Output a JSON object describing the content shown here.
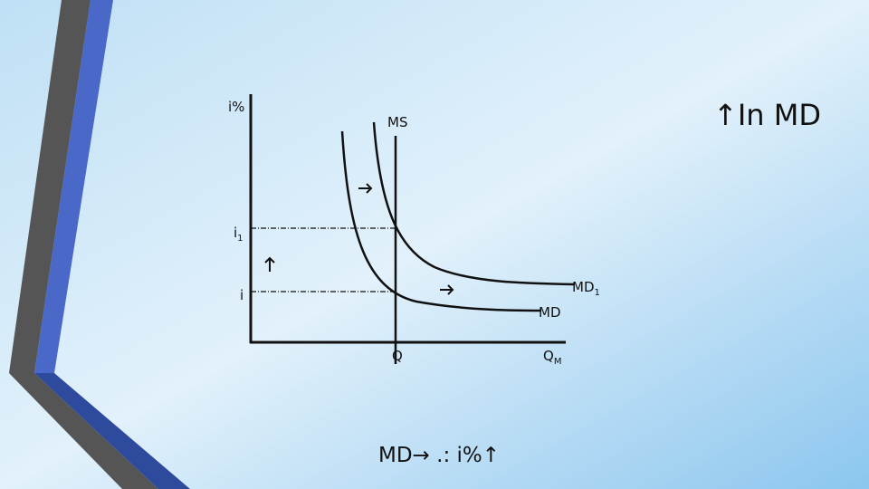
{
  "slide": {
    "title": "↑In MD",
    "footer": "MD→ .: i%↑",
    "diagram": {
      "y_axis_label": "i%",
      "ms_label": "MS",
      "rate_high": {
        "text": "i",
        "sub": "1"
      },
      "rate_low": {
        "text": "i"
      },
      "md1_label": {
        "text": "MD",
        "sub": "1"
      },
      "md_label": {
        "text": "MD"
      },
      "q_label": {
        "text": "Q"
      },
      "qm_label": {
        "text": "Q",
        "sub": "M"
      }
    }
  }
}
